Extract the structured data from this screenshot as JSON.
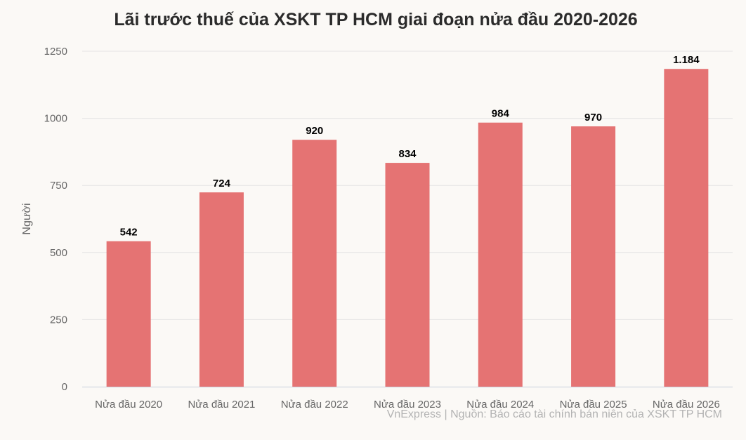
{
  "colors": {
    "bar": "#e57373",
    "grid": "#e4e4e4",
    "axis": "#c7d0dd",
    "tick_text": "#666666",
    "label_text": "#000000",
    "source_text": "#b3b3b3"
  },
  "source": "VnExpress | Nguồn: Báo cáo tài chính bán niên của XSKT TP HCM",
  "chart_data": {
    "type": "bar",
    "title": "Lãi trước thuế của XSKT TP HCM giai đoạn nửa đầu 2020-2026",
    "xlabel": "",
    "ylabel": "Người",
    "categories": [
      "Nửa đầu 2020",
      "Nửa đầu 2021",
      "Nửa đầu 2022",
      "Nửa đầu 2023",
      "Nửa đầu 2024",
      "Nửa đầu 2025",
      "Nửa đầu 2026"
    ],
    "values": [
      542,
      724,
      920,
      834,
      984,
      970,
      1184
    ],
    "data_labels": [
      "542",
      "724",
      "920",
      "834",
      "984",
      "970",
      "1.184"
    ],
    "ylim": [
      0,
      1250
    ],
    "yticks": [
      0,
      250,
      500,
      750,
      1000,
      1250
    ],
    "grid": true,
    "legend": "none"
  }
}
